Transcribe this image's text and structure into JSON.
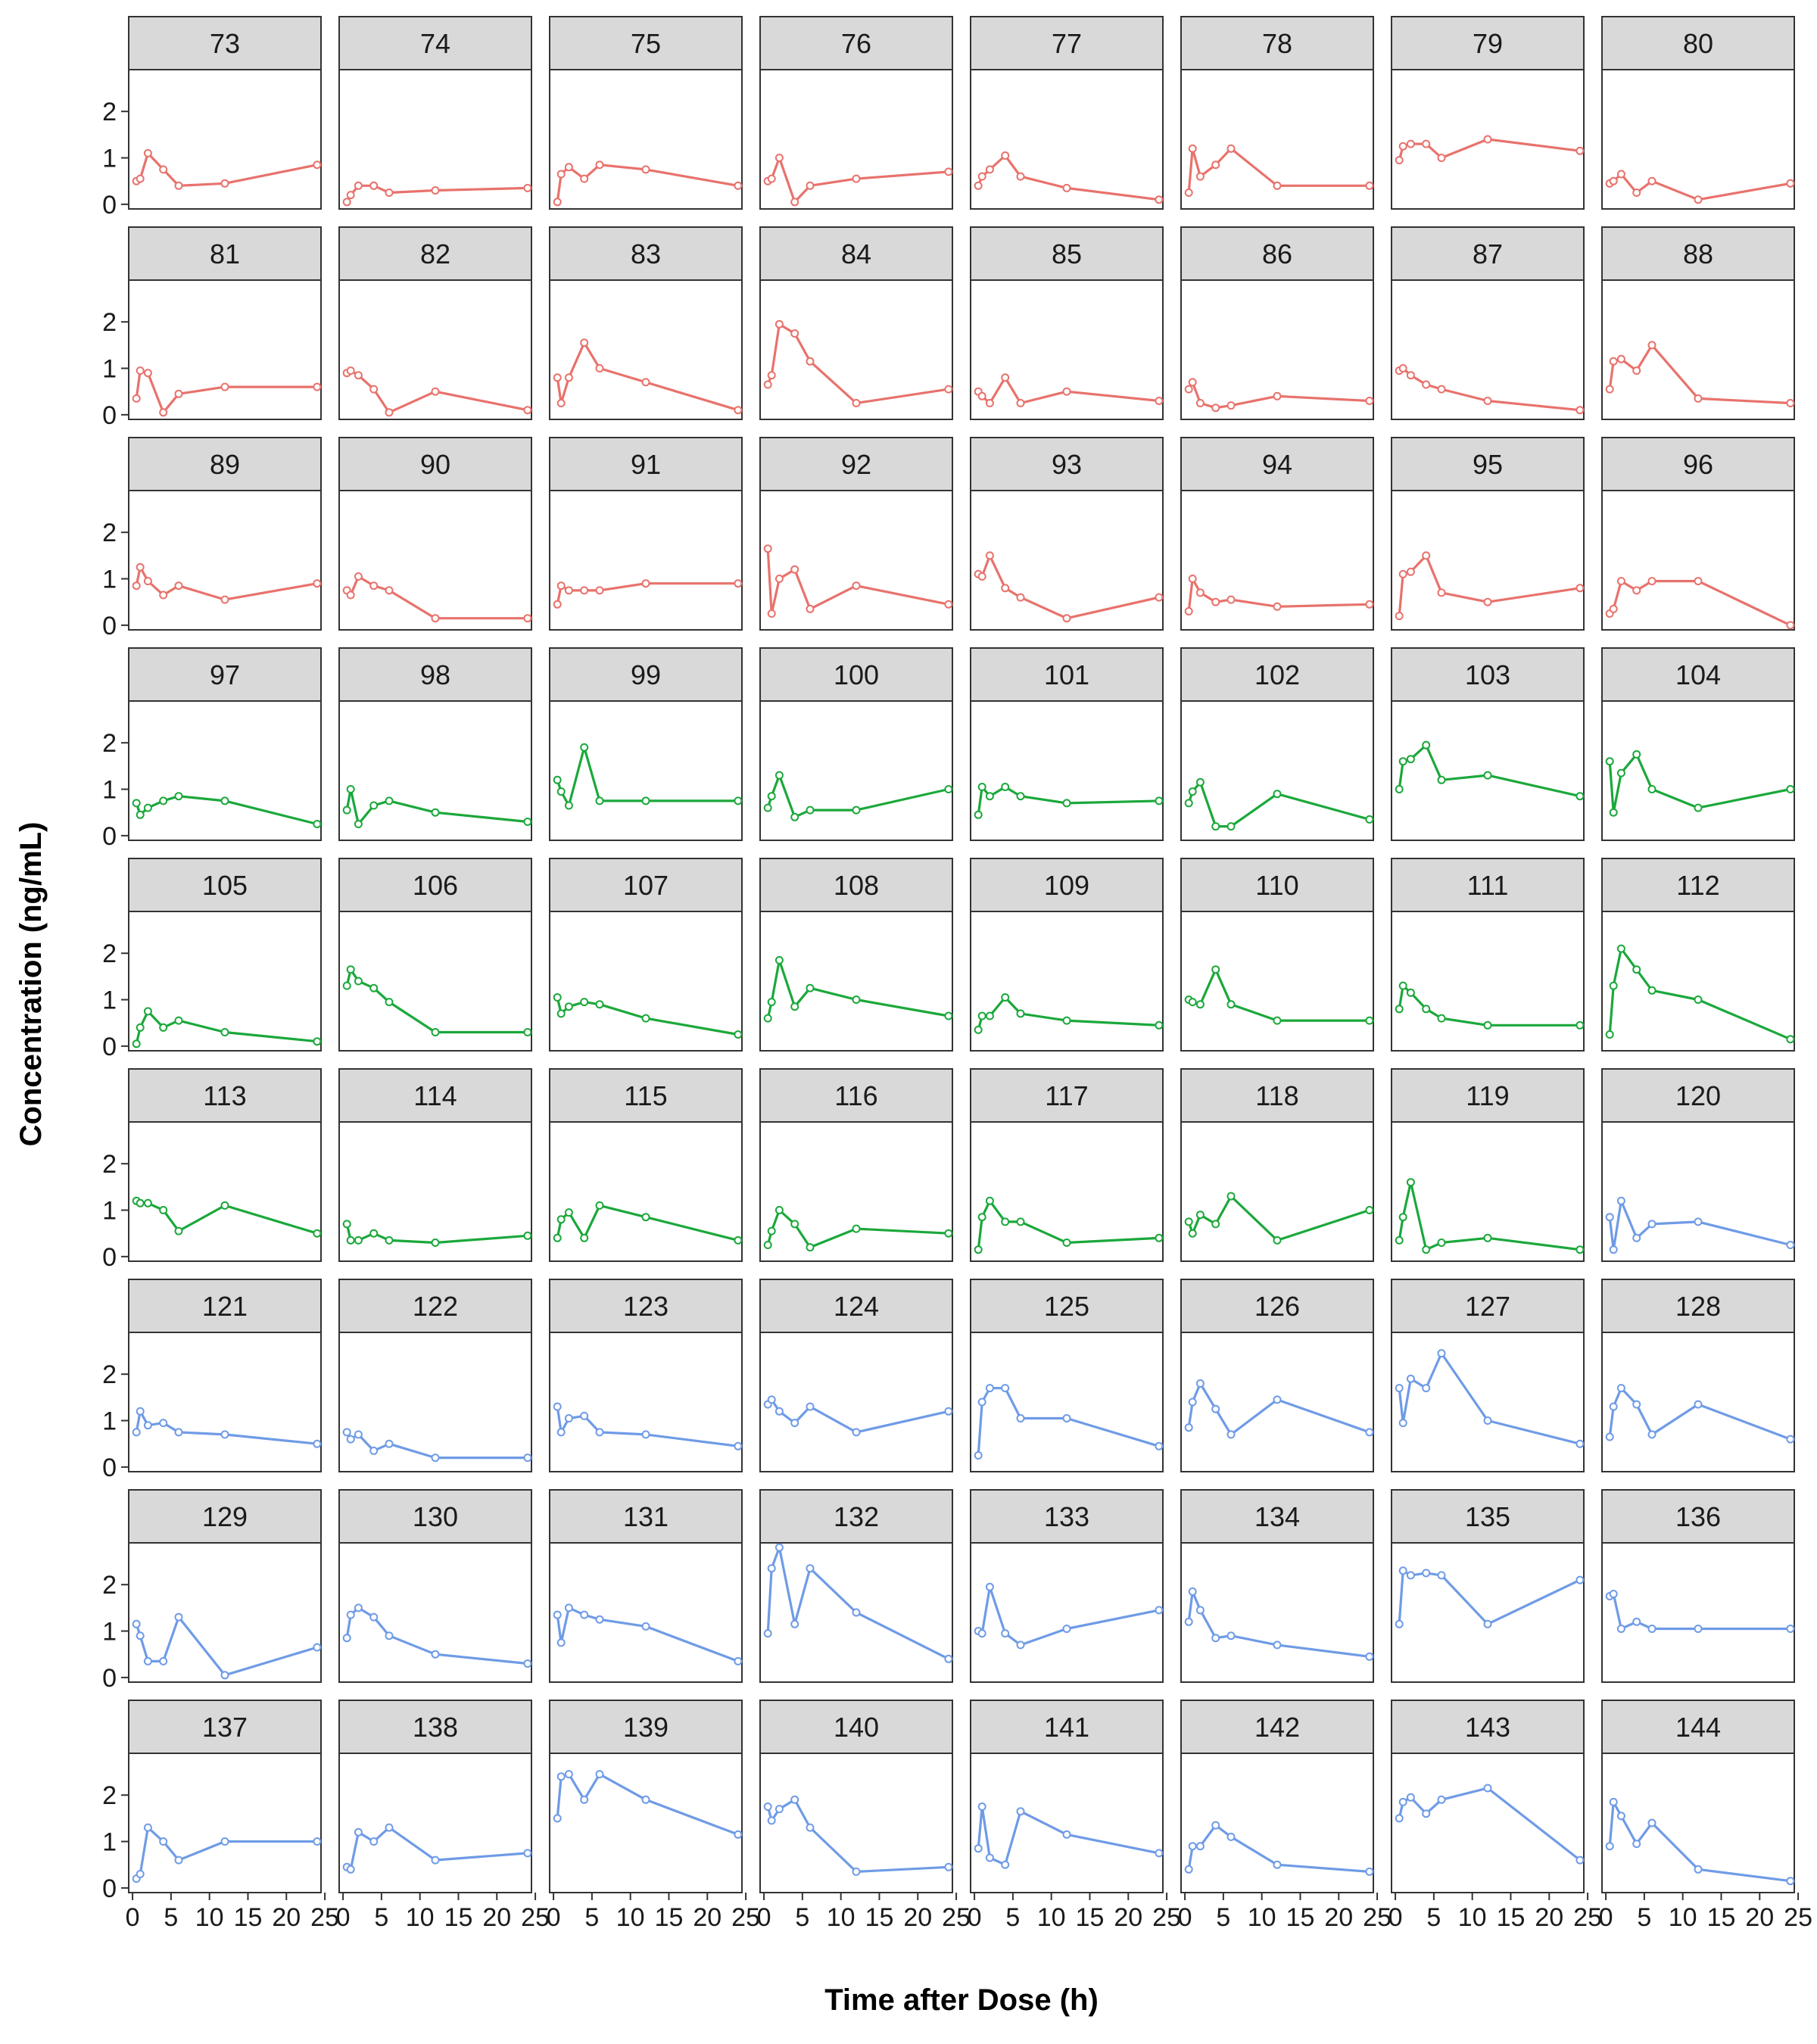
{
  "chart_data": {
    "type": "line",
    "layout": "facet-grid",
    "facet_columns": 8,
    "xlabel": "Time after Dose (h)",
    "ylabel": "Concentration (ng/mL)",
    "xlim": [
      -0.5,
      24.5
    ],
    "ylim": [
      -0.1,
      2.9
    ],
    "xticks": [
      0,
      5,
      10,
      15,
      20,
      25
    ],
    "xtick_labels": [
      "0",
      "5",
      "10",
      "15",
      "20",
      "25"
    ],
    "yticks": [
      0,
      1,
      2
    ],
    "ytick_labels": [
      "0",
      "1",
      "2"
    ],
    "x": [
      0.5,
      1,
      2,
      4,
      6,
      12,
      24
    ],
    "group_colors": {
      "red": "#E8726C",
      "green": "#1BA83B",
      "blue": "#6F9BE6"
    },
    "panels": [
      {
        "id": "73",
        "group": "red",
        "values": [
          0.5,
          0.55,
          1.1,
          0.75,
          0.4,
          0.45,
          0.85
        ]
      },
      {
        "id": "74",
        "group": "red",
        "values": [
          0.05,
          0.2,
          0.4,
          0.4,
          0.25,
          0.3,
          0.35
        ]
      },
      {
        "id": "75",
        "group": "red",
        "values": [
          0.05,
          0.65,
          0.8,
          0.55,
          0.85,
          0.75,
          0.4
        ]
      },
      {
        "id": "76",
        "group": "red",
        "values": [
          0.5,
          0.55,
          1.0,
          0.05,
          0.4,
          0.55,
          0.7
        ]
      },
      {
        "id": "77",
        "group": "red",
        "values": [
          0.4,
          0.6,
          0.75,
          1.05,
          0.6,
          0.35,
          0.1
        ]
      },
      {
        "id": "78",
        "group": "red",
        "values": [
          0.25,
          1.2,
          0.6,
          0.85,
          1.2,
          0.4,
          0.4
        ]
      },
      {
        "id": "79",
        "group": "red",
        "values": [
          0.95,
          1.25,
          1.3,
          1.3,
          1.0,
          1.4,
          1.15
        ]
      },
      {
        "id": "80",
        "group": "red",
        "values": [
          0.45,
          0.5,
          0.65,
          0.25,
          0.5,
          0.1,
          0.45
        ]
      },
      {
        "id": "81",
        "group": "red",
        "values": [
          0.35,
          0.95,
          0.9,
          0.05,
          0.45,
          0.6,
          0.6
        ]
      },
      {
        "id": "82",
        "group": "red",
        "values": [
          0.9,
          0.95,
          0.85,
          0.55,
          0.05,
          0.5,
          0.1
        ]
      },
      {
        "id": "83",
        "group": "red",
        "values": [
          0.8,
          0.25,
          0.8,
          1.55,
          1.0,
          0.7,
          0.1
        ]
      },
      {
        "id": "84",
        "group": "red",
        "values": [
          0.65,
          0.85,
          1.95,
          1.75,
          1.15,
          0.25,
          0.55
        ]
      },
      {
        "id": "85",
        "group": "red",
        "values": [
          0.5,
          0.4,
          0.25,
          0.8,
          0.25,
          0.5,
          0.3
        ]
      },
      {
        "id": "86",
        "group": "red",
        "values": [
          0.55,
          0.7,
          0.25,
          0.15,
          0.2,
          0.4,
          0.3
        ]
      },
      {
        "id": "87",
        "group": "red",
        "values": [
          0.95,
          1.0,
          0.85,
          0.65,
          0.55,
          0.3,
          0.1
        ]
      },
      {
        "id": "88",
        "group": "red",
        "values": [
          0.55,
          1.15,
          1.2,
          0.95,
          1.5,
          0.35,
          0.25
        ]
      },
      {
        "id": "89",
        "group": "red",
        "values": [
          0.85,
          1.25,
          0.95,
          0.65,
          0.85,
          0.55,
          0.9
        ]
      },
      {
        "id": "90",
        "group": "red",
        "values": [
          0.75,
          0.65,
          1.05,
          0.85,
          0.75,
          0.15,
          0.15
        ]
      },
      {
        "id": "91",
        "group": "red",
        "values": [
          0.45,
          0.85,
          0.75,
          0.75,
          0.75,
          0.9,
          0.9
        ]
      },
      {
        "id": "92",
        "group": "red",
        "values": [
          1.65,
          0.25,
          1.0,
          1.2,
          0.35,
          0.85,
          0.45
        ]
      },
      {
        "id": "93",
        "group": "red",
        "values": [
          1.1,
          1.05,
          1.5,
          0.8,
          0.6,
          0.15,
          0.6
        ]
      },
      {
        "id": "94",
        "group": "red",
        "values": [
          0.3,
          1.0,
          0.7,
          0.5,
          0.55,
          0.4,
          0.45
        ]
      },
      {
        "id": "95",
        "group": "red",
        "values": [
          0.2,
          1.1,
          1.15,
          1.5,
          0.7,
          0.5,
          0.8
        ]
      },
      {
        "id": "96",
        "group": "red",
        "values": [
          0.25,
          0.35,
          0.95,
          0.75,
          0.95,
          0.95,
          0.0
        ]
      },
      {
        "id": "97",
        "group": "green",
        "values": [
          0.7,
          0.45,
          0.6,
          0.75,
          0.85,
          0.75,
          0.25
        ]
      },
      {
        "id": "98",
        "group": "green",
        "values": [
          0.55,
          1.0,
          0.25,
          0.65,
          0.75,
          0.5,
          0.3
        ]
      },
      {
        "id": "99",
        "group": "green",
        "values": [
          1.2,
          0.95,
          0.65,
          1.9,
          0.75,
          0.75,
          0.75
        ]
      },
      {
        "id": "100",
        "group": "green",
        "values": [
          0.6,
          0.85,
          1.3,
          0.4,
          0.55,
          0.55,
          1.0
        ]
      },
      {
        "id": "101",
        "group": "green",
        "values": [
          0.45,
          1.05,
          0.85,
          1.05,
          0.85,
          0.7,
          0.75
        ]
      },
      {
        "id": "102",
        "group": "green",
        "values": [
          0.7,
          0.95,
          1.15,
          0.2,
          0.2,
          0.9,
          0.35
        ]
      },
      {
        "id": "103",
        "group": "green",
        "values": [
          1.0,
          1.6,
          1.65,
          1.95,
          1.2,
          1.3,
          0.85
        ]
      },
      {
        "id": "104",
        "group": "green",
        "values": [
          1.6,
          0.5,
          1.35,
          1.75,
          1.0,
          0.6,
          1.0
        ]
      },
      {
        "id": "105",
        "group": "green",
        "values": [
          0.05,
          0.4,
          0.75,
          0.4,
          0.55,
          0.3,
          0.1
        ]
      },
      {
        "id": "106",
        "group": "green",
        "values": [
          1.3,
          1.65,
          1.4,
          1.25,
          0.95,
          0.3,
          0.3
        ]
      },
      {
        "id": "107",
        "group": "green",
        "values": [
          1.05,
          0.7,
          0.85,
          0.95,
          0.9,
          0.6,
          0.25
        ]
      },
      {
        "id": "108",
        "group": "green",
        "values": [
          0.6,
          0.95,
          1.85,
          0.85,
          1.25,
          1.0,
          0.65
        ]
      },
      {
        "id": "109",
        "group": "green",
        "values": [
          0.35,
          0.65,
          0.65,
          1.05,
          0.7,
          0.55,
          0.45
        ]
      },
      {
        "id": "110",
        "group": "green",
        "values": [
          1.0,
          0.95,
          0.9,
          1.65,
          0.9,
          0.55,
          0.55
        ]
      },
      {
        "id": "111",
        "group": "green",
        "values": [
          0.8,
          1.3,
          1.15,
          0.8,
          0.6,
          0.45,
          0.45
        ]
      },
      {
        "id": "112",
        "group": "green",
        "values": [
          0.25,
          1.3,
          2.1,
          1.65,
          1.2,
          1.0,
          0.15
        ]
      },
      {
        "id": "113",
        "group": "green",
        "values": [
          1.2,
          1.15,
          1.15,
          1.0,
          0.55,
          1.1,
          0.5
        ]
      },
      {
        "id": "114",
        "group": "green",
        "values": [
          0.7,
          0.35,
          0.35,
          0.5,
          0.35,
          0.3,
          0.45
        ]
      },
      {
        "id": "115",
        "group": "green",
        "values": [
          0.4,
          0.8,
          0.95,
          0.4,
          1.1,
          0.85,
          0.35
        ]
      },
      {
        "id": "116",
        "group": "green",
        "values": [
          0.25,
          0.55,
          1.0,
          0.7,
          0.2,
          0.6,
          0.5
        ]
      },
      {
        "id": "117",
        "group": "green",
        "values": [
          0.15,
          0.85,
          1.2,
          0.75,
          0.75,
          0.3,
          0.4
        ]
      },
      {
        "id": "118",
        "group": "green",
        "values": [
          0.75,
          0.5,
          0.9,
          0.7,
          1.3,
          0.35,
          1.0
        ]
      },
      {
        "id": "119",
        "group": "green",
        "values": [
          0.35,
          0.85,
          1.6,
          0.15,
          0.3,
          0.4,
          0.15
        ]
      },
      {
        "id": "120",
        "group": "blue",
        "values": [
          0.85,
          0.15,
          1.2,
          0.4,
          0.7,
          0.75,
          0.25
        ]
      },
      {
        "id": "121",
        "group": "blue",
        "values": [
          0.75,
          1.2,
          0.9,
          0.95,
          0.75,
          0.7,
          0.5
        ]
      },
      {
        "id": "122",
        "group": "blue",
        "values": [
          0.75,
          0.6,
          0.7,
          0.35,
          0.5,
          0.2,
          0.2
        ]
      },
      {
        "id": "123",
        "group": "blue",
        "values": [
          1.3,
          0.75,
          1.05,
          1.1,
          0.75,
          0.7,
          0.45
        ]
      },
      {
        "id": "124",
        "group": "blue",
        "values": [
          1.35,
          1.45,
          1.2,
          0.95,
          1.3,
          0.75,
          1.2
        ]
      },
      {
        "id": "125",
        "group": "blue",
        "values": [
          0.25,
          1.4,
          1.7,
          1.7,
          1.05,
          1.05,
          0.45
        ]
      },
      {
        "id": "126",
        "group": "blue",
        "values": [
          0.85,
          1.4,
          1.8,
          1.25,
          0.7,
          1.45,
          0.75
        ]
      },
      {
        "id": "127",
        "group": "blue",
        "values": [
          1.7,
          0.95,
          1.9,
          1.7,
          2.45,
          1.0,
          0.5
        ]
      },
      {
        "id": "128",
        "group": "blue",
        "values": [
          0.65,
          1.3,
          1.7,
          1.35,
          0.7,
          1.35,
          0.6
        ]
      },
      {
        "id": "129",
        "group": "blue",
        "values": [
          1.15,
          0.9,
          0.35,
          0.35,
          1.3,
          0.05,
          0.65
        ]
      },
      {
        "id": "130",
        "group": "blue",
        "values": [
          0.85,
          1.35,
          1.5,
          1.3,
          0.9,
          0.5,
          0.3
        ]
      },
      {
        "id": "131",
        "group": "blue",
        "values": [
          1.35,
          0.75,
          1.5,
          1.35,
          1.25,
          1.1,
          0.35
        ]
      },
      {
        "id": "132",
        "group": "blue",
        "values": [
          0.95,
          2.35,
          2.8,
          1.15,
          2.35,
          1.4,
          0.4
        ]
      },
      {
        "id": "133",
        "group": "blue",
        "values": [
          1.0,
          0.95,
          1.95,
          0.95,
          0.7,
          1.05,
          1.45
        ]
      },
      {
        "id": "134",
        "group": "blue",
        "values": [
          1.2,
          1.85,
          1.45,
          0.85,
          0.9,
          0.7,
          0.45
        ]
      },
      {
        "id": "135",
        "group": "blue",
        "values": [
          1.15,
          2.3,
          2.2,
          2.25,
          2.2,
          1.15,
          2.1
        ]
      },
      {
        "id": "136",
        "group": "blue",
        "values": [
          1.75,
          1.8,
          1.05,
          1.2,
          1.05,
          1.05,
          1.05
        ]
      },
      {
        "id": "137",
        "group": "blue",
        "values": [
          0.2,
          0.3,
          1.3,
          1.0,
          0.6,
          1.0,
          1.0
        ]
      },
      {
        "id": "138",
        "group": "blue",
        "values": [
          0.45,
          0.4,
          1.2,
          1.0,
          1.3,
          0.6,
          0.75
        ]
      },
      {
        "id": "139",
        "group": "blue",
        "values": [
          1.5,
          2.4,
          2.45,
          1.9,
          2.45,
          1.9,
          1.15
        ]
      },
      {
        "id": "140",
        "group": "blue",
        "values": [
          1.75,
          1.45,
          1.7,
          1.9,
          1.3,
          0.35,
          0.45
        ]
      },
      {
        "id": "141",
        "group": "blue",
        "values": [
          0.85,
          1.75,
          0.65,
          0.5,
          1.65,
          1.15,
          0.75
        ]
      },
      {
        "id": "142",
        "group": "blue",
        "values": [
          0.4,
          0.9,
          0.9,
          1.35,
          1.1,
          0.5,
          0.35
        ]
      },
      {
        "id": "143",
        "group": "blue",
        "values": [
          1.5,
          1.85,
          1.95,
          1.6,
          1.9,
          2.15,
          0.6
        ]
      },
      {
        "id": "144",
        "group": "blue",
        "values": [
          0.9,
          1.85,
          1.55,
          0.95,
          1.4,
          0.4,
          0.15
        ]
      }
    ]
  }
}
